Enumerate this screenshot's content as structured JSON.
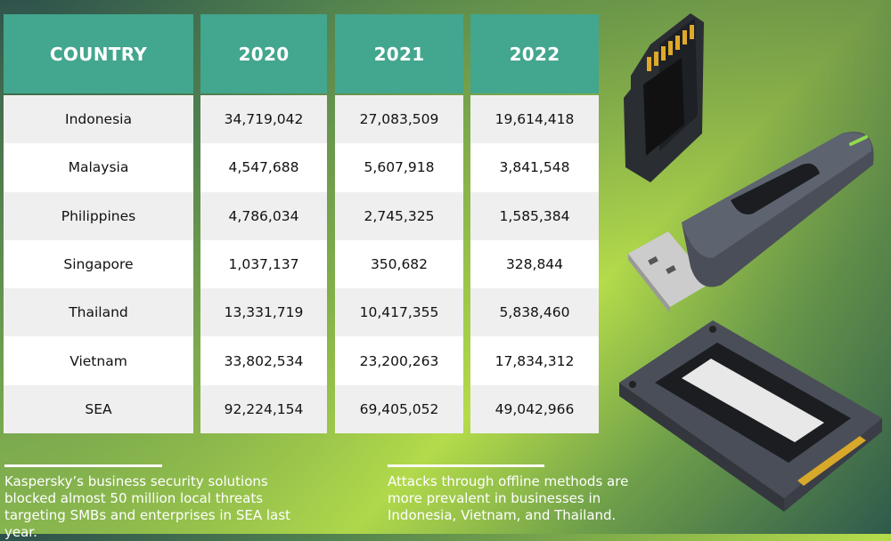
{
  "chart_data": {
    "type": "table",
    "columns": [
      "COUNTRY",
      "2020",
      "2021",
      "2022"
    ],
    "rows": [
      [
        "Indonesia",
        "34,719,042",
        "27,083,509",
        "19,614,418"
      ],
      [
        "Malaysia",
        "4,547,688",
        "5,607,918",
        "3,841,548"
      ],
      [
        "Philippines",
        "4,786,034",
        "2,745,325",
        "1,585,384"
      ],
      [
        "Singapore",
        "1,037,137",
        "350,682",
        "328,844"
      ],
      [
        "Thailand",
        "13,331,719",
        "10,417,355",
        "5,838,460"
      ],
      [
        "Vietnam",
        "33,802,534",
        "23,200,263",
        "17,834,312"
      ],
      [
        "SEA",
        "92,224,154",
        "69,405,052",
        "49,042,966"
      ]
    ],
    "header_color": "#43a68e"
  },
  "notes": {
    "left": "Kaspersky’s business security solutions blocked almost 50 million local threats targeting SMBs and enterprises in SEA last year.",
    "right": "Attacks through offline methods are more prevalent in businesses in Indonesia, Vietnam, and Thailand."
  },
  "illustrations": [
    "sd-card-icon",
    "usb-drive-icon",
    "ssd-drive-icon"
  ]
}
